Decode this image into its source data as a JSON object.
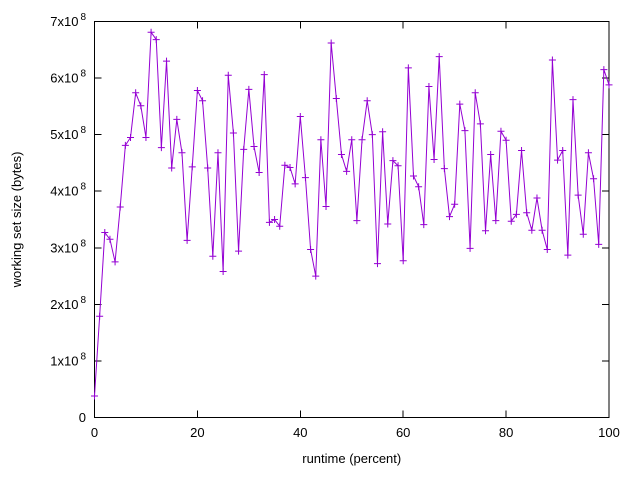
{
  "figure": {
    "background": "#ffffff",
    "axis_color": "#000000",
    "text_color": "#000000"
  },
  "chart_data": {
    "type": "line",
    "title": "",
    "xlabel": "runtime (percent)",
    "ylabel": "working set size (bytes)",
    "series_color": "#9400d3",
    "marker": "plus",
    "grid": false,
    "legend": "none",
    "xlim": [
      0,
      100
    ],
    "ylim_bytes_e8": [
      0,
      7
    ],
    "xticks": [
      0,
      20,
      40,
      60,
      80,
      100
    ],
    "yticks_e8": [
      0,
      1,
      2,
      3,
      4,
      5,
      6,
      7
    ],
    "ytick_labels": [
      "0",
      "1x10^8",
      "2x10^8",
      "3x10^8",
      "4x10^8",
      "5x10^8",
      "6x10^8",
      "7x10^8"
    ],
    "x_percent_start": 0,
    "x_percent_step": 1,
    "values_e8_bytes": [
      0.38,
      1.79,
      3.27,
      3.15,
      2.75,
      3.72,
      4.81,
      4.95,
      5.74,
      5.51,
      4.95,
      6.81,
      6.68,
      4.77,
      6.3,
      4.41,
      5.27,
      4.68,
      3.13,
      4.43,
      5.78,
      5.6,
      4.41,
      2.85,
      4.68,
      2.58,
      6.05,
      5.03,
      2.94,
      4.74,
      5.8,
      4.79,
      4.33,
      6.06,
      3.45,
      3.5,
      3.38,
      4.46,
      4.42,
      4.13,
      5.32,
      4.24,
      2.97,
      2.5,
      4.91,
      3.73,
      6.62,
      5.64,
      4.65,
      4.35,
      4.91,
      3.48,
      4.91,
      5.6,
      5.0,
      2.72,
      5.05,
      3.42,
      4.54,
      4.45,
      2.77,
      6.18,
      4.27,
      4.08,
      3.41,
      5.85,
      4.56,
      6.38,
      4.4,
      3.55,
      3.77,
      5.54,
      5.07,
      2.99,
      5.74,
      5.19,
      3.3,
      4.65,
      3.48,
      5.06,
      4.9,
      3.47,
      3.59,
      4.72,
      3.62,
      3.31,
      3.88,
      3.31,
      2.97,
      6.32,
      4.55,
      4.72,
      2.87,
      5.62,
      3.93,
      3.24,
      4.68,
      4.22,
      3.06,
      6.15,
      5.88
    ]
  }
}
